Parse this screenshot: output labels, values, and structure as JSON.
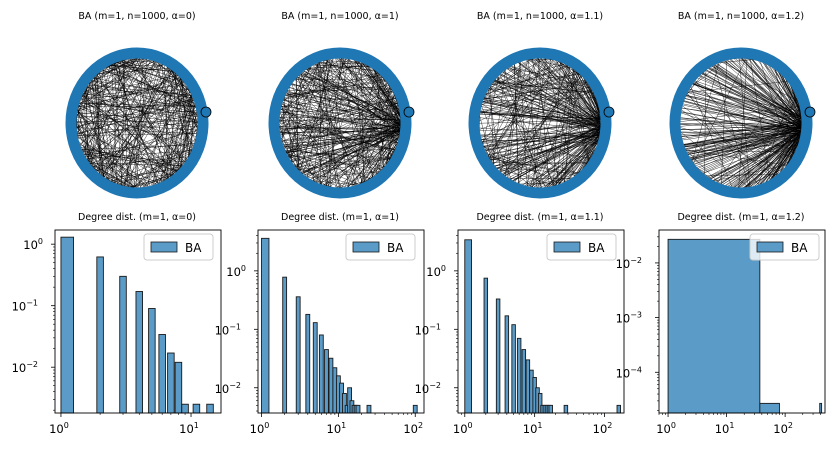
{
  "colors": {
    "node": "#1f77b4",
    "bar": "#5b9bc8",
    "edge": "#000000",
    "bar_edge": "#1a1a1a"
  },
  "networks": [
    {
      "title": "BA (m=1, n=1000, α=0)",
      "hub_strength": 0.0
    },
    {
      "title": "BA (m=1, n=1000, α=1)",
      "hub_strength": 0.35
    },
    {
      "title": "BA (m=1, n=1000, α=1.1)",
      "hub_strength": 0.55
    },
    {
      "title": "BA (m=1, n=1000, α=1.2)",
      "hub_strength": 0.8
    }
  ],
  "chart_data": [
    {
      "type": "bar",
      "title": "Degree dist. (m=1, α=0)",
      "legend": [
        "BA"
      ],
      "legend_position": "top-right",
      "xscale": "log",
      "yscale": "log",
      "xlim": [
        0.9,
        17
      ],
      "ylim": [
        0.0018,
        1.7
      ],
      "xticks": [
        1,
        10
      ],
      "yticks": [
        0.01,
        0.1,
        1
      ],
      "x": [
        1,
        2,
        3,
        4,
        5,
        6,
        7,
        8,
        9,
        11,
        14
      ],
      "values": [
        1.3,
        0.62,
        0.3,
        0.17,
        0.09,
        0.034,
        0.017,
        0.012,
        0.0025,
        0.0025,
        0.0025
      ]
    },
    {
      "type": "bar",
      "title": "Degree dist. (m=1, α=1)",
      "legend": [
        "BA"
      ],
      "legend_position": "top-right",
      "xscale": "log",
      "yscale": "log",
      "xlim": [
        0.9,
        130
      ],
      "ylim": [
        0.0037,
        5
      ],
      "xticks": [
        1,
        10,
        100
      ],
      "yticks": [
        0.01,
        0.1,
        1
      ],
      "x": [
        1,
        2,
        3,
        4,
        5,
        6,
        7,
        8,
        9,
        10,
        11,
        12,
        13,
        14,
        15,
        16,
        17,
        18,
        25,
        100
      ],
      "values": [
        3.6,
        0.78,
        0.36,
        0.18,
        0.13,
        0.08,
        0.045,
        0.032,
        0.022,
        0.016,
        0.012,
        0.008,
        0.005,
        0.01,
        0.006,
        0.005,
        0.005,
        0.005,
        0.005,
        0.005
      ]
    },
    {
      "type": "bar",
      "title": "Degree dist. (m=1, α=1.1)",
      "legend": [
        "BA"
      ],
      "legend_position": "top-right",
      "xscale": "log",
      "yscale": "log",
      "xlim": [
        0.8,
        190
      ],
      "ylim": [
        0.0037,
        5
      ],
      "xticks": [
        1,
        10,
        100
      ],
      "yticks": [
        0.01,
        0.1,
        1
      ],
      "x": [
        1,
        2,
        3,
        4,
        5,
        6,
        7,
        8,
        9,
        10,
        11,
        12,
        13,
        14,
        15,
        16,
        17,
        28,
        160
      ],
      "values": [
        3.4,
        0.75,
        0.33,
        0.17,
        0.12,
        0.07,
        0.045,
        0.03,
        0.02,
        0.015,
        0.01,
        0.008,
        0.005,
        0.005,
        0.005,
        0.005,
        0.005,
        0.005,
        0.005
      ]
    },
    {
      "type": "bar",
      "title": "Degree dist. (m=1, α=1.2)",
      "legend": [
        "BA"
      ],
      "legend_position": "top-right",
      "xscale": "log",
      "yscale": "log",
      "xlim": [
        0.7,
        480
      ],
      "ylim": [
        1.8e-05,
        0.04
      ],
      "xticks": [
        1,
        10,
        100
      ],
      "yticks": [
        0.0001,
        0.001,
        0.01
      ],
      "bins": [
        {
          "from": 1,
          "to": 37,
          "value": 0.027
        },
        {
          "from": 37,
          "to": 80,
          "value": 2.7e-05
        },
        {
          "from": 390,
          "to": 420,
          "value": 2.7e-05
        }
      ]
    }
  ]
}
